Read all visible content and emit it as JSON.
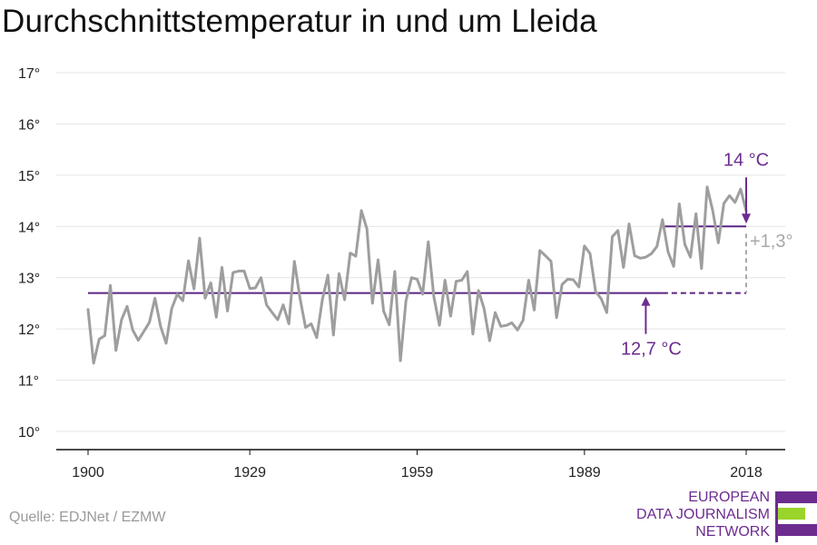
{
  "title": "Durchschnittstemperatur in und um Lleida",
  "source": "Quelle: EDJNet / EZMW",
  "logo": {
    "lines": [
      "EUROPEAN",
      "DATA JOURNALISM",
      "NETWORK"
    ],
    "colors": {
      "purple": "#6c2c8f",
      "green": "#9bd42b"
    }
  },
  "colors": {
    "series": "#9e9e9e",
    "reference": "#5b2585",
    "annotation": "#6c2c8f",
    "difference": "#a8a8a8",
    "grid": "#e4e4e4"
  },
  "chart_data": {
    "type": "line",
    "title": "Durchschnittstemperatur in und um Lleida",
    "xlabel": "",
    "ylabel": "",
    "xlim": [
      1900,
      2018
    ],
    "ylim": [
      10,
      17
    ],
    "x_ticks": [
      1900,
      1929,
      1959,
      1989,
      2018
    ],
    "y_ticks": [
      10,
      11,
      12,
      13,
      14,
      15,
      16,
      17
    ],
    "y_tick_suffix": "°",
    "grid": true,
    "series": [
      {
        "x": [
          1900,
          1901,
          1902,
          1903,
          1904,
          1905,
          1906,
          1907,
          1908,
          1909,
          1910,
          1911,
          1912,
          1913,
          1914,
          1915,
          1916,
          1917,
          1918,
          1919,
          1920,
          1921,
          1922,
          1923,
          1924,
          1925,
          1926,
          1927,
          1928,
          1929,
          1930,
          1931,
          1932,
          1933,
          1934,
          1935,
          1936,
          1937,
          1938,
          1939,
          1940,
          1941,
          1942,
          1943,
          1944,
          1945,
          1946,
          1947,
          1948,
          1949,
          1950,
          1951,
          1952,
          1953,
          1954,
          1955,
          1956,
          1957,
          1958,
          1959,
          1960,
          1961,
          1962,
          1963,
          1964,
          1965,
          1966,
          1967,
          1968,
          1969,
          1970,
          1971,
          1972,
          1973,
          1974,
          1975,
          1976,
          1977,
          1978,
          1979,
          1980,
          1981,
          1982,
          1983,
          1984,
          1985,
          1986,
          1987,
          1988,
          1989,
          1990,
          1991,
          1992,
          1993,
          1994,
          1995,
          1996,
          1997,
          1998,
          1999,
          2000,
          2001,
          2002,
          2003,
          2004,
          2005,
          2006,
          2007,
          2008,
          2009,
          2010,
          2011,
          2012,
          2013,
          2014,
          2015,
          2016,
          2017,
          2018
        ],
        "values": [
          12.38,
          11.33,
          11.8,
          11.87,
          12.85,
          11.58,
          12.18,
          12.44,
          11.98,
          11.78,
          11.95,
          12.13,
          12.6,
          12.05,
          11.72,
          12.4,
          12.68,
          12.55,
          13.33,
          12.78,
          13.77,
          12.6,
          12.9,
          12.23,
          13.2,
          12.35,
          13.1,
          13.13,
          13.13,
          12.79,
          12.8,
          13.0,
          12.47,
          12.32,
          12.18,
          12.47,
          12.1,
          13.32,
          12.6,
          12.03,
          12.1,
          11.83,
          12.57,
          13.05,
          11.88,
          13.08,
          12.57,
          13.48,
          13.42,
          14.31,
          13.95,
          12.5,
          13.35,
          12.35,
          12.08,
          13.12,
          11.38,
          12.55,
          13.0,
          12.97,
          12.68,
          13.7,
          12.63,
          12.07,
          12.95,
          12.25,
          12.93,
          12.95,
          13.12,
          11.9,
          12.75,
          12.4,
          11.77,
          12.32,
          12.05,
          12.07,
          12.12,
          11.98,
          12.17,
          12.95,
          12.37,
          13.53,
          13.43,
          13.32,
          12.22,
          12.87,
          12.97,
          12.96,
          12.82,
          13.62,
          13.47,
          12.73,
          12.59,
          12.32,
          13.8,
          13.92,
          13.2,
          14.05,
          13.43,
          13.38,
          13.4,
          13.47,
          13.61,
          14.13,
          13.5,
          13.22,
          14.44,
          13.65,
          13.4,
          14.25,
          13.18,
          14.77,
          14.31,
          13.68,
          14.45,
          14.6,
          14.47,
          14.73,
          14.3
        ]
      }
    ],
    "reference_lines": [
      {
        "label": "12,7 °C",
        "value": 12.7,
        "x_start": 1900,
        "x_end": 2003,
        "dashed_to": 2018
      },
      {
        "label": "14 °C",
        "value": 14.0,
        "x_start": 2003,
        "x_end": 2018
      }
    ],
    "difference_label": "+1,3°"
  }
}
